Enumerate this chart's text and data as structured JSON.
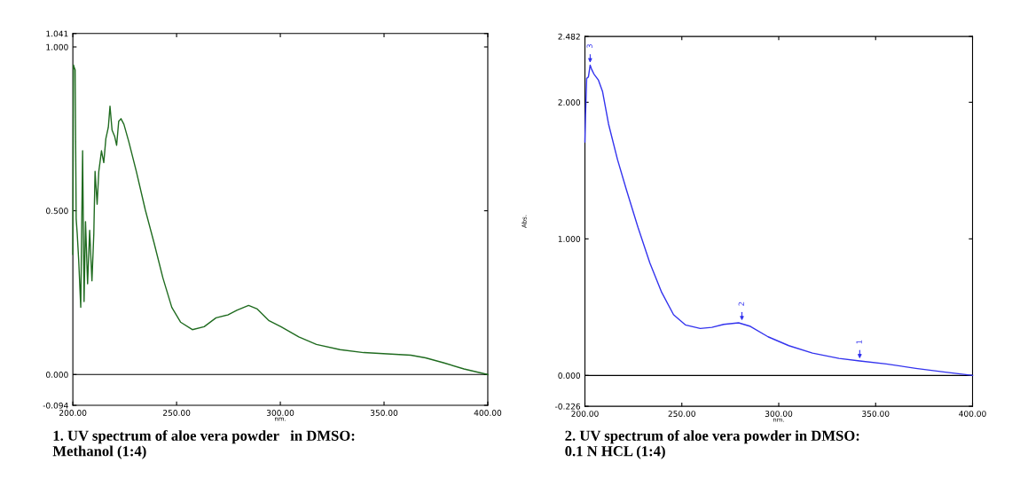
{
  "chart_data": [
    {
      "type": "line",
      "title": "1. UV spectrum of aloe vera powder   in DMSO:\nMethanol (1:4)",
      "xlabel": "nm.",
      "series": [
        {
          "color": "#1f6b1f",
          "x": [
            200,
            200.3,
            200.7,
            201.1,
            201.6,
            202.1,
            202.8,
            203.8,
            204.7,
            205.4,
            206.1,
            207.1,
            208.1,
            209.2,
            210.1,
            210.7,
            211.7,
            212.5,
            213.8,
            214.9,
            215.9,
            217.1,
            217.9,
            218.9,
            220.1,
            221.1,
            222.1,
            223.2,
            224.6,
            227.0,
            230.6,
            234.9,
            239.1,
            243.4,
            247.7,
            251.9,
            257.6,
            263.3,
            269.0,
            274.7,
            279.0,
            284.7,
            288.9,
            294.6,
            300.3,
            308.9,
            317.4,
            328.8,
            340.2,
            351.5,
            362.9,
            370.0,
            378.6,
            388.5,
            400
          ],
          "values": [
            0.367,
            0.945,
            0.936,
            0.93,
            0.475,
            0.43,
            0.35,
            0.205,
            0.683,
            0.223,
            0.467,
            0.277,
            0.44,
            0.286,
            0.43,
            0.62,
            0.52,
            0.62,
            0.683,
            0.647,
            0.72,
            0.755,
            0.819,
            0.746,
            0.728,
            0.7,
            0.773,
            0.781,
            0.764,
            0.71,
            0.62,
            0.503,
            0.403,
            0.295,
            0.205,
            0.16,
            0.137,
            0.146,
            0.173,
            0.182,
            0.196,
            0.211,
            0.2,
            0.164,
            0.146,
            0.115,
            0.092,
            0.076,
            0.067,
            0.063,
            0.059,
            0.051,
            0.036,
            0.017,
            0.0
          ]
        }
      ],
      "xlim": [
        200,
        400
      ],
      "xticks": [
        {
          "value": 200,
          "label": "200.00"
        },
        {
          "value": 250,
          "label": "250.00"
        },
        {
          "value": 300,
          "label": "300.00"
        },
        {
          "value": 350,
          "label": "350.00"
        },
        {
          "value": 400,
          "label": "400.00"
        }
      ],
      "ylim": [
        -0.094,
        1.041
      ],
      "yticks": [
        {
          "value": -0.094,
          "label": "-0.094"
        },
        {
          "value": 0,
          "label": "0.000"
        },
        {
          "value": 0.5,
          "label": "0.500"
        },
        {
          "value": 1.0,
          "label": "1.000"
        },
        {
          "value": 1.041,
          "label": "1.041"
        }
      ],
      "ref_lines": [
        {
          "axis": "y",
          "value": 0,
          "color": "#000000"
        }
      ],
      "grid": false
    },
    {
      "type": "line",
      "title": "2. UV spectrum of aloe vera powder in DMSO:\n0.1 N HCL (1:4)",
      "xlabel": "nm.",
      "ylabel": "Abs.",
      "series": [
        {
          "color": "#3333ee",
          "x": [
            200,
            200.3,
            200.9,
            201.8,
            202.7,
            203.5,
            204.6,
            206.9,
            209.1,
            212.2,
            216.8,
            221.3,
            227.4,
            233.5,
            239.6,
            245.7,
            251.8,
            259.5,
            265.5,
            271.6,
            279.3,
            285.4,
            294.5,
            305.2,
            317.4,
            331.1,
            341.8,
            355.5,
            370.7,
            386.0,
            400
          ],
          "values": [
            1.71,
            1.905,
            2.175,
            2.186,
            2.272,
            2.24,
            2.208,
            2.164,
            2.078,
            1.84,
            1.581,
            1.364,
            1.083,
            0.824,
            0.608,
            0.445,
            0.37,
            0.344,
            0.352,
            0.374,
            0.385,
            0.359,
            0.283,
            0.218,
            0.164,
            0.125,
            0.106,
            0.084,
            0.052,
            0.024,
            0.0
          ]
        }
      ],
      "annotations": [
        {
          "text": "3",
          "x": 202.7,
          "y": 2.272
        },
        {
          "text": "2",
          "x": 281,
          "y": 0.385
        },
        {
          "text": "1",
          "x": 341.8,
          "y": 0.106
        }
      ],
      "xlim": [
        200,
        400
      ],
      "xticks": [
        {
          "value": 200,
          "label": "200.00"
        },
        {
          "value": 250,
          "label": "250.00"
        },
        {
          "value": 300,
          "label": "300.00"
        },
        {
          "value": 350,
          "label": "350.00"
        },
        {
          "value": 400,
          "label": "400.00"
        }
      ],
      "ylim": [
        -0.226,
        2.482
      ],
      "yticks": [
        {
          "value": -0.226,
          "label": "-0.226"
        },
        {
          "value": 0,
          "label": "0.000"
        },
        {
          "value": 1.0,
          "label": "1.000"
        },
        {
          "value": 2.0,
          "label": "2.000"
        },
        {
          "value": 2.482,
          "label": "2.482"
        }
      ],
      "ref_lines": [
        {
          "axis": "y",
          "value": 0,
          "color": "#000000"
        }
      ],
      "grid": false
    }
  ]
}
